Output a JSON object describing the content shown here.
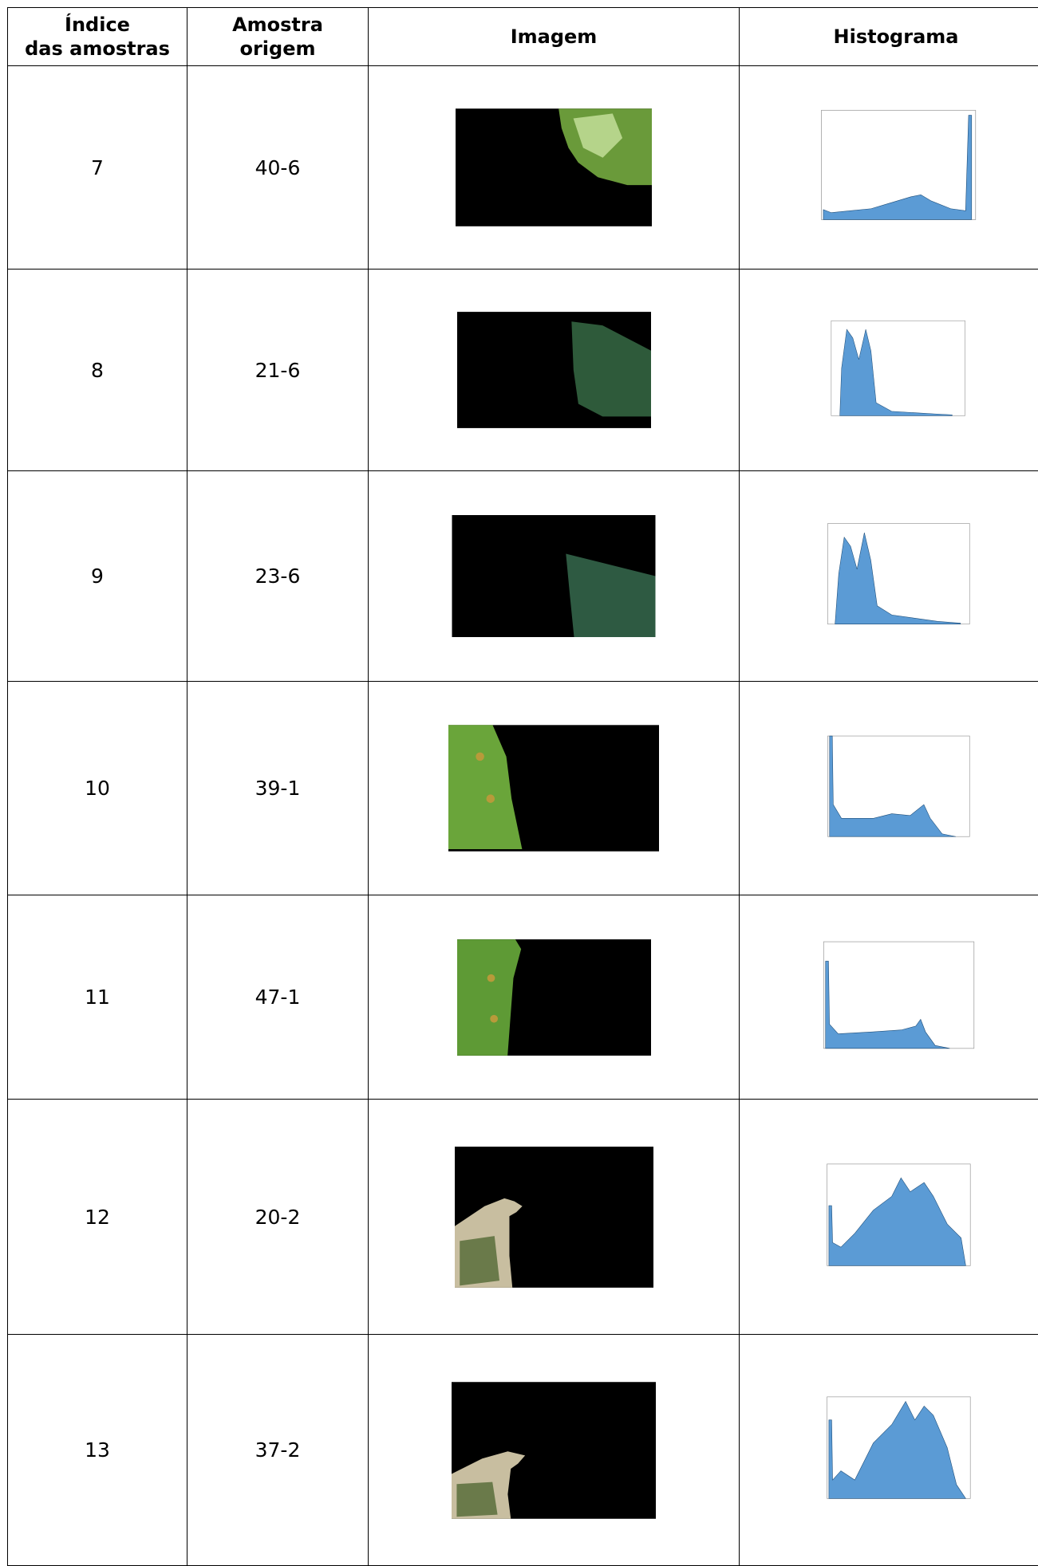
{
  "table": {
    "header": [
      "Índice\ndas amostras",
      "Amostra\norigem",
      "Imagem",
      "Histograma"
    ],
    "rows": [
      [
        "7",
        "40-6"
      ],
      [
        "8",
        "21-6"
      ],
      [
        "9",
        "23-6"
      ],
      [
        "10",
        "39-1"
      ],
      [
        "11",
        "47-1"
      ],
      [
        "12",
        "20-2"
      ],
      [
        "13",
        "37-2"
      ]
    ]
  }
}
